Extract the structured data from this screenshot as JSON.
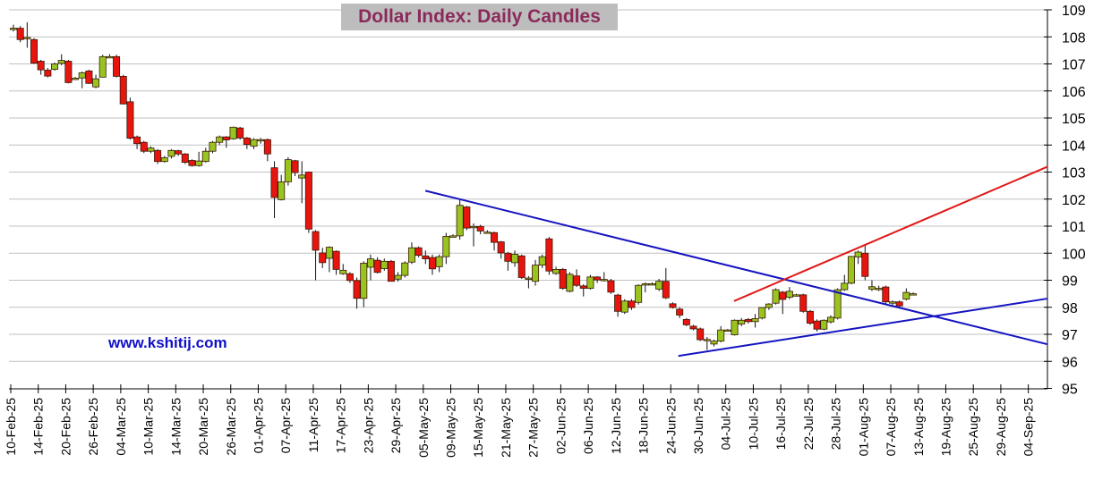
{
  "chart_data": {
    "type": "candlestick",
    "title": "Dollar Index: Daily Candles",
    "watermark": "www.kshitij.com",
    "ylim": [
      95,
      109
    ],
    "yticks": [
      95,
      96,
      97,
      98,
      99,
      100,
      101,
      102,
      103,
      104,
      105,
      106,
      107,
      108,
      109
    ],
    "y_axis_side": "right",
    "grid": "horizontal",
    "xticks": [
      "10-Feb-25",
      "14-Feb-25",
      "20-Feb-25",
      "26-Feb-25",
      "04-Mar-25",
      "10-Mar-25",
      "14-Mar-25",
      "20-Mar-25",
      "26-Mar-25",
      "01-Apr-25",
      "07-Apr-25",
      "11-Apr-25",
      "17-Apr-25",
      "23-Apr-25",
      "29-Apr-25",
      "05-May-25",
      "09-May-25",
      "15-May-25",
      "21-May-25",
      "27-May-25",
      "02-Jun-25",
      "06-Jun-25",
      "12-Jun-25",
      "18-Jun-25",
      "24-Jun-25",
      "30-Jun-25",
      "04-Jul-25",
      "10-Jul-25",
      "16-Jul-25",
      "22-Jul-25",
      "28-Jul-25",
      "01-Aug-25",
      "07-Aug-25",
      "13-Aug-25",
      "19-Aug-25",
      "25-Aug-25",
      "29-Aug-25",
      "04-Sep-25"
    ],
    "xtick_step_days": 4,
    "colors": {
      "up": "#99c31f",
      "down": "#e8140e",
      "outline": "#3a1a0a",
      "grid": "#c0c0c0",
      "support": "#1414c0",
      "resistance_up": "#e01818"
    },
    "candles_ohlc": [
      [
        108.27,
        108.45,
        108.2,
        108.32
      ],
      [
        108.32,
        108.4,
        107.8,
        107.9
      ],
      [
        107.98,
        108.54,
        107.6,
        107.98
      ],
      [
        107.9,
        107.95,
        107.0,
        107.03
      ],
      [
        107.1,
        107.15,
        106.6,
        106.78
      ],
      [
        106.77,
        106.85,
        106.5,
        106.55
      ],
      [
        106.8,
        107.05,
        106.75,
        107.0
      ],
      [
        107.02,
        107.36,
        106.95,
        107.13
      ],
      [
        107.1,
        107.15,
        106.28,
        106.31
      ],
      [
        106.47,
        106.52,
        106.42,
        106.47
      ],
      [
        106.48,
        106.72,
        106.1,
        106.67
      ],
      [
        106.74,
        106.78,
        106.26,
        106.28
      ],
      [
        106.15,
        106.6,
        106.1,
        106.45
      ],
      [
        106.51,
        107.34,
        106.5,
        107.27
      ],
      [
        107.27,
        107.36,
        107.25,
        107.27
      ],
      [
        107.27,
        107.34,
        106.5,
        106.54
      ],
      [
        106.54,
        106.6,
        105.5,
        105.52
      ],
      [
        105.6,
        105.75,
        104.2,
        104.25
      ],
      [
        104.3,
        104.35,
        103.85,
        104.05
      ],
      [
        104.1,
        104.15,
        103.7,
        103.77
      ],
      [
        103.77,
        103.95,
        103.7,
        103.89
      ],
      [
        103.8,
        103.85,
        103.3,
        103.39
      ],
      [
        103.39,
        103.6,
        103.35,
        103.53
      ],
      [
        103.58,
        103.85,
        103.5,
        103.8
      ],
      [
        103.79,
        103.82,
        103.6,
        103.67
      ],
      [
        103.67,
        103.7,
        103.3,
        103.36
      ],
      [
        103.43,
        103.47,
        103.2,
        103.24
      ],
      [
        103.24,
        103.75,
        103.2,
        103.41
      ],
      [
        103.39,
        103.9,
        103.35,
        103.77
      ],
      [
        103.77,
        104.15,
        103.7,
        104.1
      ],
      [
        104.1,
        104.35,
        104.0,
        104.3
      ],
      [
        104.3,
        104.33,
        103.9,
        104.19
      ],
      [
        104.23,
        104.68,
        104.2,
        104.66
      ],
      [
        104.63,
        104.67,
        104.2,
        104.26
      ],
      [
        104.26,
        104.3,
        103.85,
        104.02
      ],
      [
        103.96,
        104.25,
        103.85,
        104.2
      ],
      [
        104.2,
        104.26,
        104.05,
        104.2
      ],
      [
        104.2,
        104.24,
        103.4,
        103.67
      ],
      [
        103.16,
        103.4,
        101.3,
        102.06
      ],
      [
        101.98,
        102.9,
        101.95,
        102.64
      ],
      [
        102.64,
        103.55,
        102.5,
        103.46
      ],
      [
        103.42,
        103.45,
        102.85,
        102.98
      ],
      [
        102.78,
        103.4,
        101.85,
        102.89
      ],
      [
        103.0,
        103.02,
        100.75,
        100.89
      ],
      [
        100.8,
        100.85,
        99.0,
        100.11
      ],
      [
        100.01,
        100.2,
        99.45,
        99.65
      ],
      [
        99.81,
        100.25,
        99.3,
        100.22
      ],
      [
        100.07,
        100.1,
        99.2,
        99.4
      ],
      [
        99.24,
        99.6,
        99.2,
        99.37
      ],
      [
        99.24,
        99.3,
        98.9,
        98.99
      ],
      [
        98.99,
        99.1,
        97.95,
        98.33
      ],
      [
        98.33,
        99.7,
        98.0,
        99.63
      ],
      [
        99.48,
        99.95,
        99.0,
        99.79
      ],
      [
        99.74,
        99.85,
        99.25,
        99.29
      ],
      [
        99.43,
        99.8,
        99.35,
        99.7
      ],
      [
        99.7,
        99.75,
        98.95,
        98.96
      ],
      [
        99.04,
        99.3,
        98.95,
        99.18
      ],
      [
        99.18,
        99.7,
        99.1,
        99.64
      ],
      [
        99.67,
        100.4,
        99.6,
        100.2
      ],
      [
        100.2,
        100.25,
        99.85,
        99.92
      ],
      [
        99.9,
        100.1,
        99.6,
        99.79
      ],
      [
        99.84,
        99.95,
        99.2,
        99.42
      ],
      [
        99.5,
        99.95,
        99.3,
        99.87
      ],
      [
        99.87,
        100.75,
        99.6,
        100.62
      ],
      [
        100.64,
        100.7,
        100.58,
        100.64
      ],
      [
        100.64,
        102.01,
        100.5,
        101.77
      ],
      [
        101.71,
        101.75,
        100.85,
        100.93
      ],
      [
        100.99,
        101.1,
        100.25,
        100.99
      ],
      [
        100.99,
        101.05,
        100.7,
        100.82
      ],
      [
        100.78,
        100.85,
        100.72,
        100.78
      ],
      [
        100.76,
        100.8,
        100.1,
        100.4
      ],
      [
        100.42,
        100.45,
        99.8,
        100.01
      ],
      [
        100.0,
        100.05,
        99.35,
        99.7
      ],
      [
        99.65,
        100.1,
        99.5,
        99.96
      ],
      [
        99.9,
        99.95,
        99.05,
        99.1
      ],
      [
        99.08,
        99.15,
        98.7,
        99.08
      ],
      [
        98.96,
        99.75,
        98.8,
        99.56
      ],
      [
        99.56,
        99.95,
        99.45,
        99.87
      ],
      [
        100.53,
        100.6,
        99.2,
        99.34
      ],
      [
        99.25,
        99.5,
        99.2,
        99.4
      ],
      [
        99.4,
        99.45,
        98.65,
        98.7
      ],
      [
        98.59,
        99.3,
        98.55,
        99.22
      ],
      [
        99.16,
        99.4,
        98.75,
        98.81
      ],
      [
        98.79,
        98.85,
        98.4,
        98.7
      ],
      [
        98.7,
        99.2,
        98.65,
        99.12
      ],
      [
        99.12,
        99.15,
        98.9,
        99.01
      ],
      [
        99.03,
        99.3,
        98.95,
        99.03
      ],
      [
        98.98,
        99.05,
        98.5,
        98.56
      ],
      [
        98.45,
        98.5,
        97.65,
        97.85
      ],
      [
        97.82,
        98.3,
        97.75,
        98.23
      ],
      [
        98.23,
        98.3,
        97.9,
        97.99
      ],
      [
        98.18,
        98.85,
        98.1,
        98.81
      ],
      [
        98.87,
        98.92,
        98.55,
        98.87
      ],
      [
        98.87,
        98.92,
        98.82,
        98.87
      ],
      [
        98.67,
        99.05,
        98.6,
        98.96
      ],
      [
        98.96,
        99.45,
        98.3,
        98.35
      ],
      [
        98.13,
        98.18,
        97.95,
        97.99
      ],
      [
        97.93,
        98.0,
        97.6,
        97.71
      ],
      [
        97.55,
        97.6,
        97.3,
        97.35
      ],
      [
        97.3,
        97.35,
        97.15,
        97.2
      ],
      [
        97.2,
        97.25,
        96.75,
        96.8
      ],
      [
        96.81,
        96.9,
        96.42,
        96.81
      ],
      [
        96.64,
        96.8,
        96.55,
        96.75
      ],
      [
        96.75,
        97.3,
        96.7,
        97.16
      ],
      [
        97.16,
        97.2,
        97.1,
        97.16
      ],
      [
        96.98,
        97.55,
        96.95,
        97.52
      ],
      [
        97.38,
        97.6,
        97.3,
        97.52
      ],
      [
        97.55,
        97.6,
        97.4,
        97.47
      ],
      [
        97.47,
        97.75,
        97.25,
        97.58
      ],
      [
        97.6,
        98.0,
        97.55,
        97.99
      ],
      [
        97.99,
        98.15,
        97.9,
        98.12
      ],
      [
        98.15,
        98.7,
        98.1,
        98.65
      ],
      [
        98.56,
        98.6,
        97.75,
        98.29
      ],
      [
        98.37,
        98.75,
        98.3,
        98.59
      ],
      [
        98.46,
        98.5,
        98.4,
        98.46
      ],
      [
        98.46,
        98.5,
        97.8,
        97.85
      ],
      [
        97.85,
        97.9,
        97.35,
        97.41
      ],
      [
        97.49,
        97.55,
        97.1,
        97.19
      ],
      [
        97.19,
        97.55,
        97.15,
        97.52
      ],
      [
        97.46,
        97.7,
        97.4,
        97.63
      ],
      [
        97.6,
        98.7,
        97.55,
        98.65
      ],
      [
        98.65,
        99.2,
        98.6,
        98.89
      ],
      [
        98.89,
        99.9,
        98.85,
        99.88
      ],
      [
        99.86,
        100.1,
        99.6,
        100.04
      ],
      [
        100.0,
        100.3,
        99.0,
        99.14
      ],
      [
        98.67,
        99.0,
        98.6,
        98.76
      ],
      [
        98.7,
        98.8,
        98.6,
        98.7
      ],
      [
        98.75,
        98.8,
        98.1,
        98.2
      ],
      [
        98.15,
        98.25,
        98.05,
        98.2
      ],
      [
        98.2,
        98.25,
        98.0,
        98.05
      ],
      [
        98.3,
        98.7,
        98.25,
        98.55
      ],
      [
        98.5,
        98.55,
        98.45,
        98.5
      ]
    ],
    "trendlines": [
      {
        "name": "falling-resistance",
        "color": "#1414c0",
        "from": [
          60.3,
          102.31
        ],
        "to": [
          150.8,
          96.63
        ]
      },
      {
        "name": "rising-support",
        "color": "#1414c0",
        "from": [
          97.1,
          96.2
        ],
        "to": [
          150.8,
          98.32
        ]
      },
      {
        "name": "rising-channel-top",
        "color": "#e01818",
        "from": [
          105.2,
          98.23
        ],
        "to": [
          150.8,
          103.2
        ]
      }
    ]
  }
}
